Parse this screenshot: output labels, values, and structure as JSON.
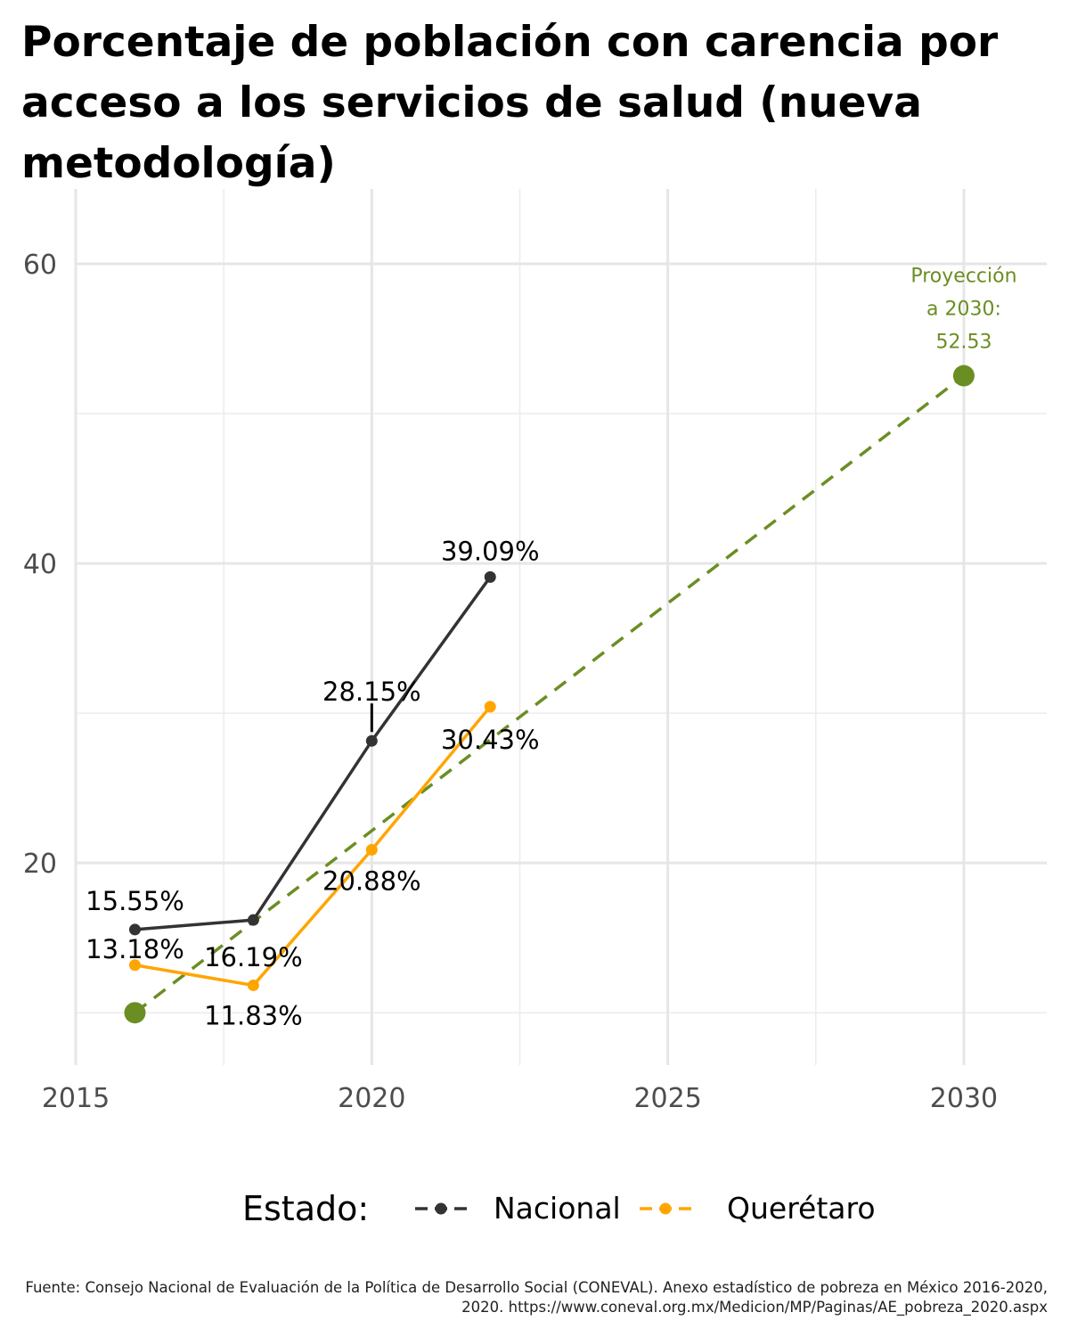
{
  "title": "Porcentaje de población con carencia por acceso a los servicios de salud (nueva metodología)",
  "source": "Fuente: Consejo Nacional de Evaluación de la Política de Desarrollo Social (CONEVAL). Anexo estadístico de pobreza en México 2016-2020, 2020. https://www.coneval.org.mx/Medicion/MP/Paginas/AE_pobreza_2020.aspx",
  "chart_data": {
    "type": "line",
    "title": "Porcentaje de población con carencia por acceso a los servicios de salud (nueva metodología)",
    "xlabel": "",
    "ylabel": "",
    "xlim": [
      2015,
      2031.4
    ],
    "ylim": [
      6.5,
      65
    ],
    "x_ticks": [
      2015,
      2020,
      2025,
      2030
    ],
    "y_ticks": [
      20,
      40,
      60
    ],
    "grid": true,
    "legend": {
      "title": "Estado:",
      "placement": "bottom"
    },
    "series": [
      {
        "name": "Nacional",
        "color": "#333333",
        "x": [
          2016,
          2018,
          2020,
          2022
        ],
        "values": [
          15.55,
          16.19,
          28.15,
          39.09
        ],
        "labels": [
          "15.55%",
          "16.19%",
          "28.15%",
          "39.09%"
        ]
      },
      {
        "name": "Querétaro",
        "color": "#FFA500",
        "x": [
          2016,
          2018,
          2020,
          2022
        ],
        "values": [
          13.18,
          11.83,
          20.88,
          30.43
        ],
        "labels": [
          "13.18%",
          "11.83%",
          "20.88%",
          "30.43%"
        ]
      }
    ],
    "projection": {
      "color": "#6B8E23",
      "x": [
        2016,
        2030
      ],
      "values": [
        10.0,
        52.53
      ],
      "annotation": [
        "Proyección",
        "a 2030:",
        "52.53"
      ]
    }
  }
}
